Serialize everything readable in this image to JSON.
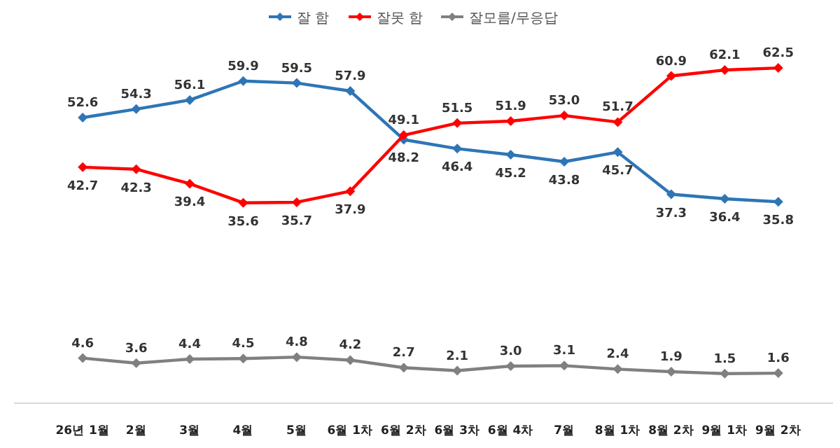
{
  "chart_data": {
    "type": "line",
    "categories": [
      "26년 1월",
      "2월",
      "3월",
      "4월",
      "5월",
      "6월 1차",
      "6월 2차",
      "6월 3차",
      "6월 4차",
      "7월",
      "8월 1차",
      "8월 2차",
      "9월 1차",
      "9월 2차"
    ],
    "series": [
      {
        "name": "잘 함",
        "color": "#2e75b6",
        "values": [
          52.6,
          54.3,
          56.1,
          59.9,
          59.5,
          57.9,
          48.2,
          46.4,
          45.2,
          43.8,
          45.7,
          37.3,
          36.4,
          35.8
        ],
        "value_labels": [
          "52.6",
          "54.3",
          "56.1",
          "59.9",
          "59.5",
          "57.9",
          "48.2",
          "46.4",
          "45.2",
          "43.8",
          "45.7",
          "37.3",
          "36.4",
          "35.8"
        ]
      },
      {
        "name": "잘못 함",
        "color": "#ff0000",
        "values": [
          42.7,
          42.3,
          39.4,
          35.6,
          35.7,
          37.9,
          49.1,
          51.5,
          51.9,
          53.0,
          51.7,
          60.9,
          62.1,
          62.5
        ],
        "value_labels": [
          "42.7",
          "42.3",
          "39.4",
          "35.6",
          "35.7",
          "37.9",
          "49.1",
          "51.5",
          "51.9",
          "53.0",
          "51.7",
          "60.9",
          "62.1",
          "62.5"
        ]
      },
      {
        "name": "잘모름/무응답",
        "color": "#808080",
        "values": [
          4.6,
          3.6,
          4.4,
          4.5,
          4.8,
          4.2,
          2.7,
          2.1,
          3.0,
          3.1,
          2.4,
          1.9,
          1.5,
          1.6
        ],
        "value_labels": [
          "4.6",
          "3.6",
          "4.4",
          "4.5",
          "4.8",
          "4.2",
          "2.7",
          "2.1",
          "3.0",
          "3.1",
          "2.4",
          "1.9",
          "1.5",
          "1.6"
        ]
      }
    ],
    "marker": "diamond",
    "legend": "top"
  }
}
